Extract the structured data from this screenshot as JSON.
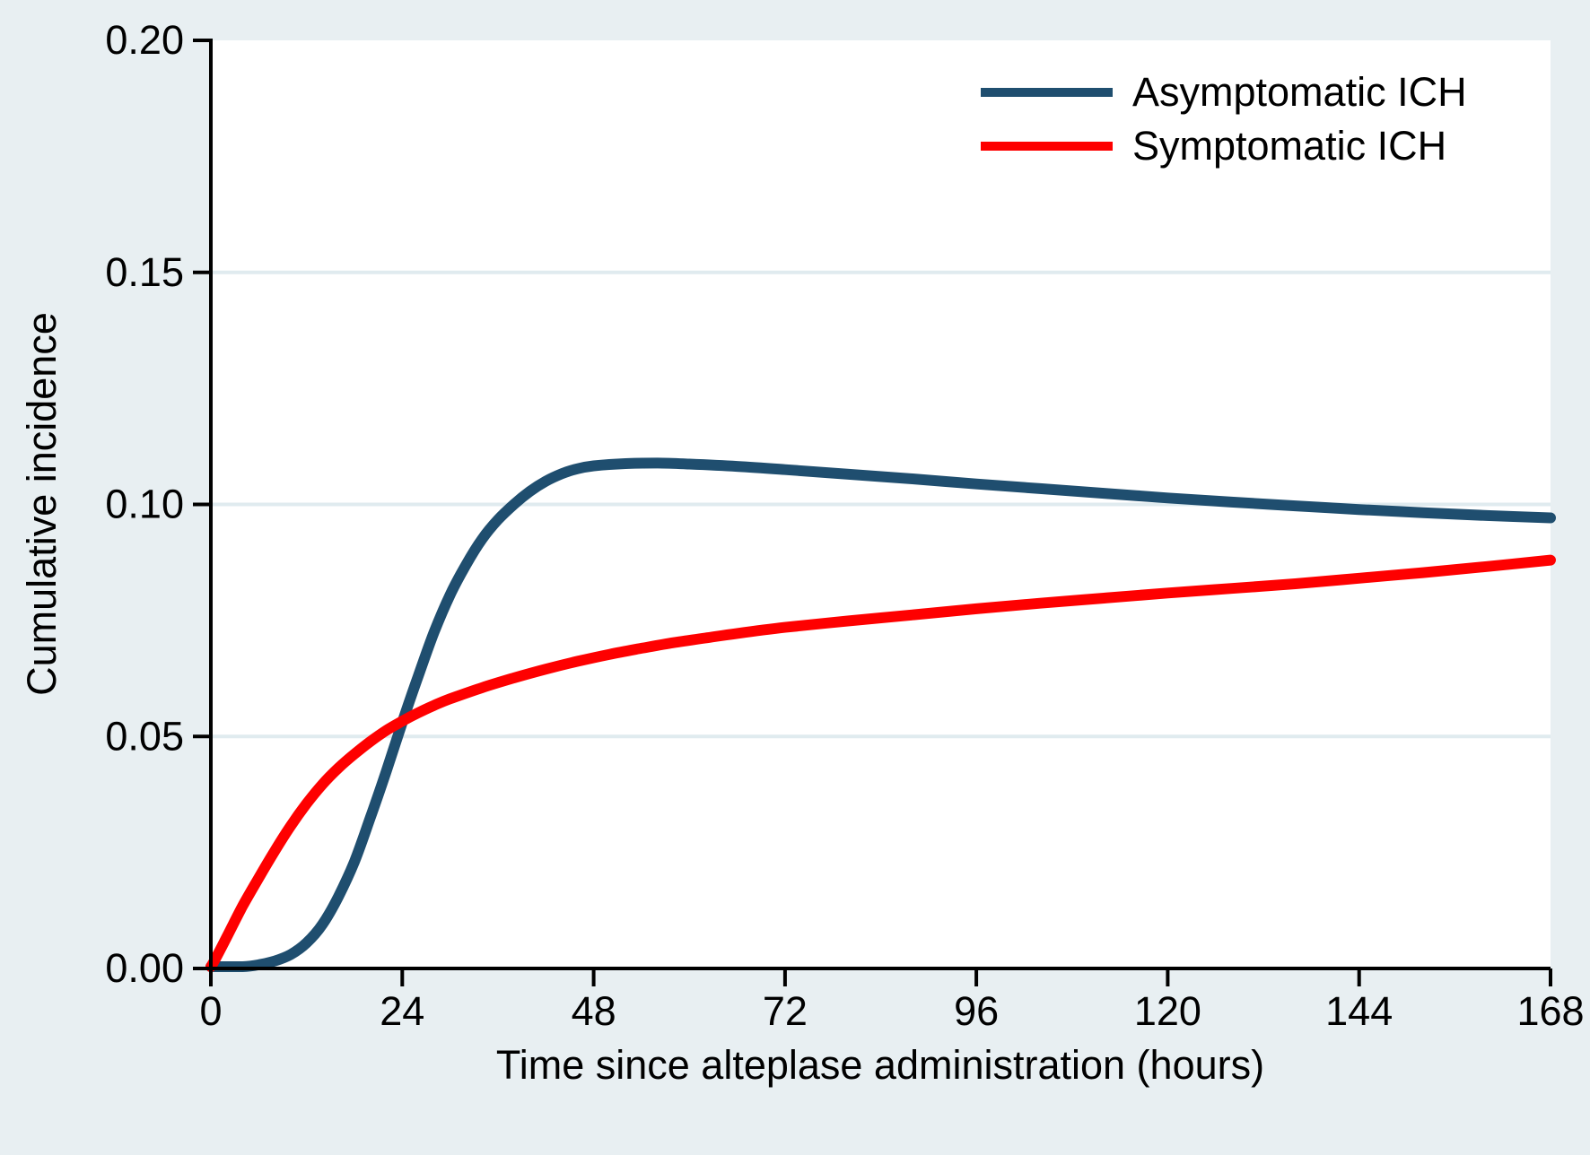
{
  "figure": {
    "background_color": "#e8eff2",
    "plot_background_color": "#ffffff",
    "gridline_color": "#e0ebef",
    "axis_color": "#000000",
    "text_color": "#000000"
  },
  "chart_data": {
    "type": "line",
    "title": "",
    "xlabel": "Time since alteplase administration (hours)",
    "ylabel": "Cumulative incidence",
    "xlim": [
      0,
      168
    ],
    "ylim": [
      0,
      0.2
    ],
    "xticks": [
      0,
      24,
      48,
      72,
      96,
      120,
      144,
      168
    ],
    "yticks": [
      {
        "value": 0.0,
        "label": "0.00"
      },
      {
        "value": 0.05,
        "label": "0.05"
      },
      {
        "value": 0.1,
        "label": "0.10"
      },
      {
        "value": 0.15,
        "label": "0.15"
      },
      {
        "value": 0.2,
        "label": "0.20"
      }
    ],
    "gridline_values": [
      0.05,
      0.1,
      0.15
    ],
    "grid": "horizontal",
    "legend_position": "top-right-inside",
    "series": [
      {
        "name": "Asymptomatic ICH",
        "color": "#1f4e6f",
        "points": [
          [
            0,
            0.0
          ],
          [
            2,
            0.0001
          ],
          [
            4,
            0.0003
          ],
          [
            6,
            0.0008
          ],
          [
            8,
            0.0016
          ],
          [
            10,
            0.003
          ],
          [
            12,
            0.0055
          ],
          [
            14,
            0.0095
          ],
          [
            16,
            0.0155
          ],
          [
            18,
            0.023
          ],
          [
            20,
            0.0325
          ],
          [
            22,
            0.0425
          ],
          [
            24,
            0.053
          ],
          [
            26,
            0.063
          ],
          [
            28,
            0.0725
          ],
          [
            30,
            0.0805
          ],
          [
            32,
            0.087
          ],
          [
            34,
            0.0925
          ],
          [
            36,
            0.0967
          ],
          [
            38,
            0.1
          ],
          [
            40,
            0.1028
          ],
          [
            42,
            0.105
          ],
          [
            44,
            0.1066
          ],
          [
            46,
            0.1077
          ],
          [
            48,
            0.1083
          ],
          [
            52,
            0.1088
          ],
          [
            56,
            0.1089
          ],
          [
            60,
            0.1087
          ],
          [
            66,
            0.1082
          ],
          [
            72,
            0.1075
          ],
          [
            80,
            0.1065
          ],
          [
            88,
            0.1055
          ],
          [
            96,
            0.1044
          ],
          [
            104,
            0.1034
          ],
          [
            112,
            0.1024
          ],
          [
            120,
            0.1014
          ],
          [
            128,
            0.1005
          ],
          [
            136,
            0.0997
          ],
          [
            144,
            0.0989
          ],
          [
            152,
            0.0982
          ],
          [
            160,
            0.0976
          ],
          [
            168,
            0.0971
          ]
        ]
      },
      {
        "name": "Symptomatic ICH",
        "color": "#fe0000",
        "points": [
          [
            0,
            0.0
          ],
          [
            2,
            0.0068
          ],
          [
            4,
            0.0135
          ],
          [
            6,
            0.0195
          ],
          [
            8,
            0.0253
          ],
          [
            10,
            0.0307
          ],
          [
            12,
            0.0355
          ],
          [
            14,
            0.0397
          ],
          [
            16,
            0.0432
          ],
          [
            18,
            0.0462
          ],
          [
            20,
            0.0489
          ],
          [
            22,
            0.0513
          ],
          [
            24,
            0.0533
          ],
          [
            26,
            0.0551
          ],
          [
            28,
            0.0567
          ],
          [
            30,
            0.0581
          ],
          [
            34,
            0.0605
          ],
          [
            38,
            0.0626
          ],
          [
            42,
            0.0645
          ],
          [
            46,
            0.0662
          ],
          [
            50,
            0.0677
          ],
          [
            54,
            0.069
          ],
          [
            58,
            0.0702
          ],
          [
            62,
            0.0712
          ],
          [
            66,
            0.0722
          ],
          [
            72,
            0.0735
          ],
          [
            80,
            0.0749
          ],
          [
            88,
            0.0762
          ],
          [
            96,
            0.0775
          ],
          [
            104,
            0.0787
          ],
          [
            112,
            0.0798
          ],
          [
            120,
            0.0809
          ],
          [
            128,
            0.0819
          ],
          [
            136,
            0.0829
          ],
          [
            144,
            0.0841
          ],
          [
            152,
            0.0853
          ],
          [
            160,
            0.0866
          ],
          [
            168,
            0.088
          ]
        ]
      }
    ]
  }
}
